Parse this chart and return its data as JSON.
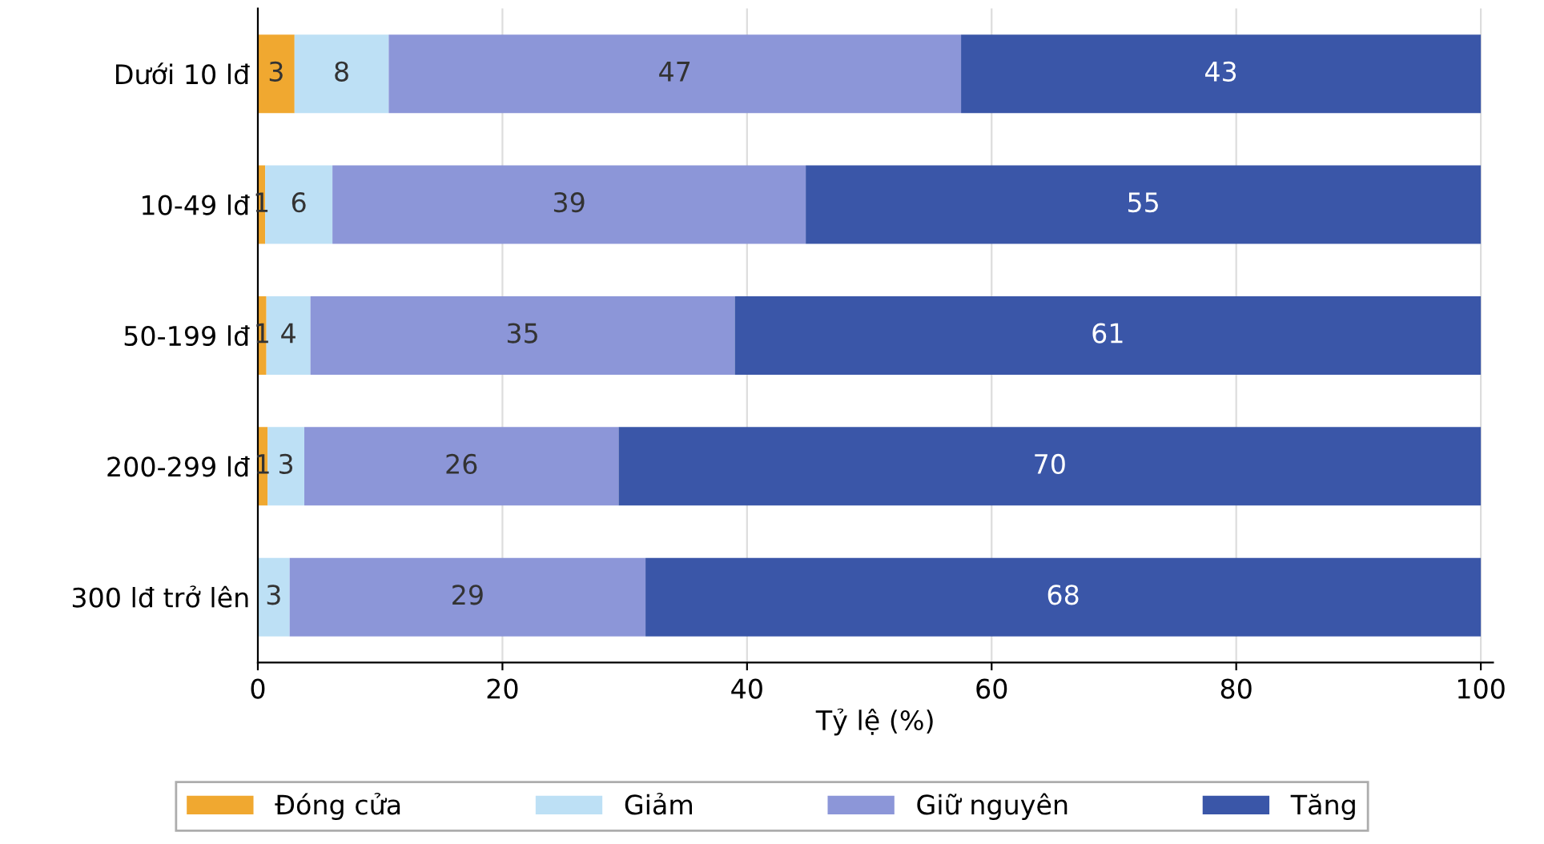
{
  "chart_data": {
    "type": "bar",
    "orientation": "horizontal",
    "stacked": true,
    "xlabel": "Tỷ lệ (%)",
    "categories": [
      "Dưới 10 lđ",
      "10-49 lđ",
      "50-199 lđ",
      "200-299 lđ",
      "300 lđ trở lên"
    ],
    "series": [
      {
        "name": "Đóng cửa",
        "color": "#f0a830",
        "values": [
          3.0,
          0.6,
          0.7,
          0.8,
          0
        ],
        "value_labels": [
          "3",
          "1",
          "1",
          "1",
          null
        ]
      },
      {
        "name": "Giảm",
        "color": "#bde0f5",
        "values": [
          7.7,
          5.5,
          3.6,
          3.0,
          2.6
        ],
        "value_labels": [
          "8",
          "6",
          "4",
          "3",
          "3"
        ]
      },
      {
        "name": "Giữ nguyên",
        "color": "#8c96d8",
        "values": [
          46.8,
          38.7,
          34.7,
          25.7,
          29.1
        ],
        "value_labels": [
          "47",
          "39",
          "35",
          "26",
          "29"
        ]
      },
      {
        "name": "Tăng",
        "color": "#3a56a8",
        "values": [
          42.5,
          55.2,
          61.0,
          70.5,
          68.3
        ],
        "value_labels": [
          "43",
          "55",
          "61",
          "70",
          "68"
        ]
      }
    ],
    "xlim": [
      0,
      101
    ],
    "xticks": [
      0,
      20,
      40,
      60,
      80,
      100
    ],
    "grid": "x",
    "legend": "bottom"
  }
}
